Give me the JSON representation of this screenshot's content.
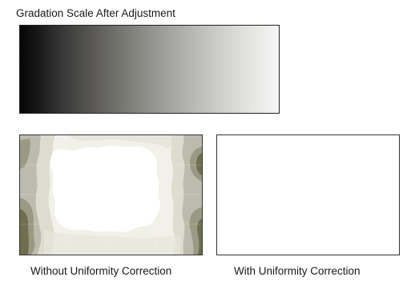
{
  "gradation": {
    "title": "Gradation Scale After Adjustment"
  },
  "panels": {
    "without": {
      "caption": "Without Uniformity Correction"
    },
    "with": {
      "caption": "With Uniformity Correction"
    }
  },
  "colors": {
    "contour_level_1": "#f1f1e9",
    "contour_level_2": "#dcdccf",
    "contour_level_3": "#bcbcae",
    "contour_level_4": "#9a9a84",
    "contour_level_5": "#6f6e4f",
    "panel_border": "#333333"
  }
}
